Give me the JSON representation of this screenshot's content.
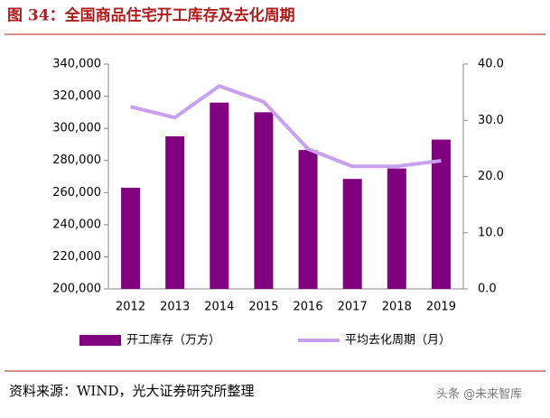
{
  "chart_data": {
    "type": "bar_line",
    "title": "图 34：全国商品住宅开工库存及去化周期",
    "categories": [
      "2012",
      "2013",
      "2014",
      "2015",
      "2016",
      "2017",
      "2018",
      "2019"
    ],
    "series": [
      {
        "name": "开工库存（万方）",
        "color": "#800080",
        "type": "bar",
        "values": [
          263000,
          295000,
          316000,
          310000,
          286500,
          268500,
          275000,
          293000
        ]
      },
      {
        "name": "平均去化周期（月）",
        "color": "#c9a0f0",
        "type": "line",
        "axis": "y2",
        "values": [
          32.4,
          30.5,
          36.1,
          33.3,
          24.9,
          21.8,
          21.8,
          22.8
        ]
      }
    ],
    "ylim": [
      200000,
      340000
    ],
    "yticks": [
      {
        "value": 200000,
        "label": "200,000"
      },
      {
        "value": 220000,
        "label": "220,000"
      },
      {
        "value": 240000,
        "label": "240,000"
      },
      {
        "value": 260000,
        "label": "260,000"
      },
      {
        "value": 280000,
        "label": "280,000"
      },
      {
        "value": 300000,
        "label": "300,000"
      },
      {
        "value": 320000,
        "label": "320,000"
      },
      {
        "value": 340000,
        "label": "340,000"
      }
    ],
    "y2lim": [
      0,
      40
    ],
    "y2ticks": [
      {
        "value": 0,
        "label": "0.0"
      },
      {
        "value": 10,
        "label": "10.0"
      },
      {
        "value": 20,
        "label": "20.0"
      },
      {
        "value": 30,
        "label": "30.0"
      },
      {
        "value": 40,
        "label": "40.0"
      }
    ],
    "source": "资料来源：WIND，光大证券研究所整理",
    "watermark": "头条 @未来智库"
  }
}
